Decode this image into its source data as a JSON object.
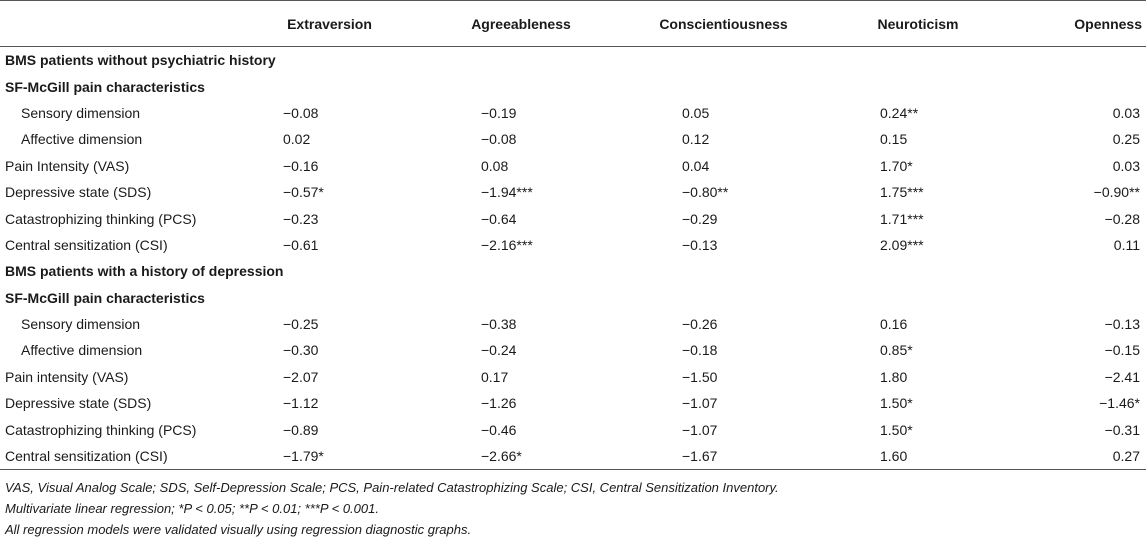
{
  "headers": [
    "",
    "Extraversion",
    "Agreeableness",
    "Conscientiousness",
    "Neuroticism",
    "Openness"
  ],
  "rows": [
    {
      "kind": "section",
      "label": "BMS patients without psychiatric history"
    },
    {
      "kind": "section",
      "label": "SF-McGill pain characteristics"
    },
    {
      "kind": "sub",
      "label": "Sensory dimension",
      "values": [
        "−0.08",
        "−0.19",
        "0.05",
        "0.24**",
        "0.03"
      ]
    },
    {
      "kind": "sub",
      "label": "Affective dimension",
      "values": [
        "0.02",
        "−0.08",
        "0.12",
        "0.15",
        "0.25"
      ]
    },
    {
      "kind": "row",
      "label": "Pain Intensity (VAS)",
      "values": [
        "−0.16",
        "0.08",
        "0.04",
        "1.70*",
        "0.03"
      ]
    },
    {
      "kind": "row",
      "label": "Depressive state (SDS)",
      "values": [
        "−0.57*",
        "−1.94***",
        "−0.80**",
        "1.75***",
        "−0.90**"
      ]
    },
    {
      "kind": "row",
      "label": "Catastrophizing thinking (PCS)",
      "values": [
        "−0.23",
        "−0.64",
        "−0.29",
        "1.71***",
        "−0.28"
      ]
    },
    {
      "kind": "row",
      "label": "Central sensitization (CSI)",
      "values": [
        "−0.61",
        "−2.16***",
        "−0.13",
        "2.09***",
        "0.11"
      ]
    },
    {
      "kind": "section",
      "label": "BMS patients with a history of depression"
    },
    {
      "kind": "section",
      "label": "SF-McGill pain characteristics"
    },
    {
      "kind": "sub",
      "label": "Sensory dimension",
      "values": [
        "−0.25",
        "−0.38",
        "−0.26",
        "0.16",
        "−0.13"
      ]
    },
    {
      "kind": "sub",
      "label": "Affective dimension",
      "values": [
        "−0.30",
        "−0.24",
        "−0.18",
        "0.85*",
        "−0.15"
      ]
    },
    {
      "kind": "row",
      "label": "Pain intensity (VAS)",
      "values": [
        "−2.07",
        "0.17",
        "−1.50",
        "1.80",
        "−2.41"
      ]
    },
    {
      "kind": "row",
      "label": "Depressive state (SDS)",
      "values": [
        "−1.12",
        "−1.26",
        "−1.07",
        "1.50*",
        "−1.46*"
      ]
    },
    {
      "kind": "row",
      "label": "Catastrophizing thinking (PCS)",
      "values": [
        "−0.89",
        "−0.46",
        "−1.07",
        "1.50*",
        "−0.31"
      ]
    },
    {
      "kind": "row",
      "label": "Central sensitization (CSI)",
      "values": [
        "−1.79*",
        "−2.66*",
        "−1.67",
        "1.60",
        "0.27"
      ]
    }
  ],
  "footnotes": {
    "abbrev": "VAS, Visual Analog Scale; SDS, Self-Depression Scale; PCS, Pain-related Catastrophizing Scale; CSI, Central Sensitization Inventory.",
    "stats": "Multivariate linear regression; *P < 0.05; **P < 0.01; ***P < 0.001.",
    "validation": "All regression models were validated visually using regression diagnostic graphs."
  }
}
